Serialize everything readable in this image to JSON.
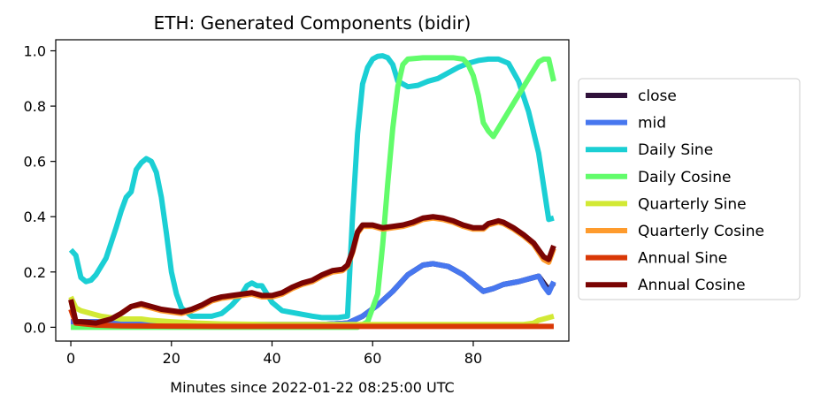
{
  "chart_data": {
    "type": "line",
    "title": "ETH: Generated Components (bidir)",
    "xlabel": "Minutes since 2022-01-22 08:25:00 UTC",
    "ylabel": "",
    "xlim": [
      -3,
      99
    ],
    "ylim": [
      -0.05,
      1.04
    ],
    "xticks": [
      0,
      20,
      40,
      60,
      80
    ],
    "yticks": [
      0.0,
      0.2,
      0.4,
      0.6,
      0.8,
      1.0
    ],
    "xtick_labels": [
      "0",
      "20",
      "40",
      "60",
      "80"
    ],
    "ytick_labels": [
      "0.0",
      "0.2",
      "0.4",
      "0.6",
      "0.8",
      "1.0"
    ],
    "grid": false,
    "legend_position": "center-right-outside",
    "series": [
      {
        "name": "close",
        "color": "#30123b",
        "points": [
          [
            0,
            0.02
          ],
          [
            5,
            0.02
          ],
          [
            10,
            0.015
          ],
          [
            20,
            0.01
          ],
          [
            30,
            0.01
          ],
          [
            40,
            0.01
          ],
          [
            50,
            0.01
          ],
          [
            55,
            0.015
          ],
          [
            58,
            0.04
          ],
          [
            61,
            0.08
          ],
          [
            64,
            0.13
          ],
          [
            67,
            0.19
          ],
          [
            70,
            0.225
          ],
          [
            72,
            0.23
          ],
          [
            75,
            0.22
          ],
          [
            78,
            0.19
          ],
          [
            80,
            0.16
          ],
          [
            82,
            0.13
          ],
          [
            84,
            0.14
          ],
          [
            86,
            0.155
          ],
          [
            89,
            0.165
          ],
          [
            92,
            0.18
          ],
          [
            93,
            0.185
          ],
          [
            94,
            0.16
          ],
          [
            95,
            0.135
          ],
          [
            96,
            0.16
          ]
        ]
      },
      {
        "name": "mid",
        "color": "#4777ef",
        "points": [
          [
            0,
            0.02
          ],
          [
            5,
            0.02
          ],
          [
            10,
            0.015
          ],
          [
            20,
            0.01
          ],
          [
            30,
            0.01
          ],
          [
            40,
            0.01
          ],
          [
            50,
            0.01
          ],
          [
            55,
            0.015
          ],
          [
            58,
            0.04
          ],
          [
            61,
            0.08
          ],
          [
            64,
            0.13
          ],
          [
            67,
            0.19
          ],
          [
            70,
            0.225
          ],
          [
            72,
            0.23
          ],
          [
            75,
            0.22
          ],
          [
            78,
            0.19
          ],
          [
            80,
            0.16
          ],
          [
            82,
            0.13
          ],
          [
            84,
            0.14
          ],
          [
            86,
            0.155
          ],
          [
            89,
            0.165
          ],
          [
            92,
            0.18
          ],
          [
            93,
            0.185
          ],
          [
            94,
            0.15
          ],
          [
            95,
            0.125
          ],
          [
            96,
            0.165
          ]
        ]
      },
      {
        "name": "Daily Sine",
        "color": "#1bcfd4",
        "points": [
          [
            0,
            0.28
          ],
          [
            1,
            0.26
          ],
          [
            2,
            0.18
          ],
          [
            3,
            0.165
          ],
          [
            4,
            0.17
          ],
          [
            5,
            0.19
          ],
          [
            7,
            0.25
          ],
          [
            9,
            0.36
          ],
          [
            10,
            0.42
          ],
          [
            11,
            0.47
          ],
          [
            12,
            0.49
          ],
          [
            13,
            0.57
          ],
          [
            14,
            0.595
          ],
          [
            15,
            0.61
          ],
          [
            16,
            0.6
          ],
          [
            17,
            0.56
          ],
          [
            18,
            0.47
          ],
          [
            19,
            0.34
          ],
          [
            20,
            0.2
          ],
          [
            21,
            0.12
          ],
          [
            22,
            0.07
          ],
          [
            24,
            0.04
          ],
          [
            26,
            0.04
          ],
          [
            28,
            0.04
          ],
          [
            30,
            0.05
          ],
          [
            32,
            0.08
          ],
          [
            34,
            0.12
          ],
          [
            35,
            0.15
          ],
          [
            36,
            0.16
          ],
          [
            37,
            0.15
          ],
          [
            38,
            0.15
          ],
          [
            39,
            0.12
          ],
          [
            40,
            0.09
          ],
          [
            42,
            0.06
          ],
          [
            45,
            0.05
          ],
          [
            48,
            0.04
          ],
          [
            50,
            0.035
          ],
          [
            53,
            0.035
          ],
          [
            55,
            0.04
          ],
          [
            56,
            0.4
          ],
          [
            57,
            0.7
          ],
          [
            58,
            0.88
          ],
          [
            59,
            0.94
          ],
          [
            60,
            0.97
          ],
          [
            61,
            0.98
          ],
          [
            62,
            0.982
          ],
          [
            63,
            0.975
          ],
          [
            64,
            0.95
          ],
          [
            65,
            0.89
          ],
          [
            67,
            0.87
          ],
          [
            69,
            0.875
          ],
          [
            71,
            0.89
          ],
          [
            73,
            0.9
          ],
          [
            75,
            0.92
          ],
          [
            77,
            0.94
          ],
          [
            79,
            0.955
          ],
          [
            81,
            0.965
          ],
          [
            83,
            0.97
          ],
          [
            85,
            0.97
          ],
          [
            87,
            0.955
          ],
          [
            89,
            0.89
          ],
          [
            91,
            0.78
          ],
          [
            93,
            0.63
          ],
          [
            95,
            0.39
          ],
          [
            96,
            0.395
          ]
        ]
      },
      {
        "name": "Daily Cosine",
        "color": "#62fc6b",
        "points": [
          [
            0,
            0.0
          ],
          [
            10,
            0.0
          ],
          [
            20,
            0.0
          ],
          [
            30,
            0.0
          ],
          [
            40,
            0.0
          ],
          [
            50,
            0.0
          ],
          [
            57,
            0.0
          ],
          [
            59,
            0.02
          ],
          [
            61,
            0.12
          ],
          [
            62,
            0.3
          ],
          [
            63,
            0.52
          ],
          [
            64,
            0.72
          ],
          [
            65,
            0.87
          ],
          [
            66,
            0.95
          ],
          [
            67,
            0.97
          ],
          [
            70,
            0.975
          ],
          [
            73,
            0.975
          ],
          [
            76,
            0.975
          ],
          [
            78,
            0.97
          ],
          [
            79,
            0.95
          ],
          [
            80,
            0.91
          ],
          [
            81,
            0.84
          ],
          [
            82,
            0.74
          ],
          [
            83,
            0.71
          ],
          [
            84,
            0.69
          ],
          [
            86,
            0.75
          ],
          [
            88,
            0.81
          ],
          [
            90,
            0.87
          ],
          [
            92,
            0.93
          ],
          [
            93,
            0.96
          ],
          [
            94,
            0.97
          ],
          [
            95,
            0.97
          ],
          [
            96,
            0.89
          ]
        ]
      },
      {
        "name": "Quarterly Sine",
        "color": "#d2e935",
        "points": [
          [
            0,
            0.11
          ],
          [
            1,
            0.07
          ],
          [
            2,
            0.06
          ],
          [
            4,
            0.05
          ],
          [
            6,
            0.04
          ],
          [
            8,
            0.035
          ],
          [
            10,
            0.03
          ],
          [
            14,
            0.03
          ],
          [
            16,
            0.025
          ],
          [
            20,
            0.02
          ],
          [
            25,
            0.015
          ],
          [
            30,
            0.012
          ],
          [
            40,
            0.01
          ],
          [
            50,
            0.01
          ],
          [
            60,
            0.01
          ],
          [
            70,
            0.01
          ],
          [
            80,
            0.01
          ],
          [
            90,
            0.01
          ],
          [
            92,
            0.015
          ],
          [
            93,
            0.025
          ],
          [
            94,
            0.03
          ],
          [
            96,
            0.04
          ]
        ]
      },
      {
        "name": "Quarterly Cosine",
        "color": "#fe9b2d",
        "points": [
          [
            0,
            0.1
          ],
          [
            1,
            0.02
          ],
          [
            2,
            0.02
          ],
          [
            5,
            0.015
          ],
          [
            8,
            0.03
          ],
          [
            10,
            0.05
          ],
          [
            12,
            0.075
          ],
          [
            14,
            0.08
          ],
          [
            16,
            0.07
          ],
          [
            18,
            0.06
          ],
          [
            20,
            0.055
          ],
          [
            22,
            0.05
          ],
          [
            24,
            0.06
          ],
          [
            26,
            0.075
          ],
          [
            28,
            0.095
          ],
          [
            30,
            0.105
          ],
          [
            32,
            0.11
          ],
          [
            34,
            0.115
          ],
          [
            36,
            0.12
          ],
          [
            38,
            0.11
          ],
          [
            40,
            0.11
          ],
          [
            42,
            0.12
          ],
          [
            44,
            0.14
          ],
          [
            46,
            0.155
          ],
          [
            48,
            0.165
          ],
          [
            50,
            0.185
          ],
          [
            52,
            0.2
          ],
          [
            54,
            0.205
          ],
          [
            55,
            0.22
          ],
          [
            56,
            0.27
          ],
          [
            57,
            0.34
          ],
          [
            58,
            0.365
          ],
          [
            60,
            0.365
          ],
          [
            62,
            0.355
          ],
          [
            64,
            0.36
          ],
          [
            66,
            0.365
          ],
          [
            68,
            0.375
          ],
          [
            70,
            0.39
          ],
          [
            72,
            0.395
          ],
          [
            74,
            0.39
          ],
          [
            76,
            0.38
          ],
          [
            78,
            0.365
          ],
          [
            80,
            0.355
          ],
          [
            82,
            0.355
          ],
          [
            83,
            0.37
          ],
          [
            84,
            0.375
          ],
          [
            85,
            0.38
          ],
          [
            86,
            0.375
          ],
          [
            88,
            0.355
          ],
          [
            90,
            0.33
          ],
          [
            92,
            0.3
          ],
          [
            94,
            0.245
          ],
          [
            95,
            0.235
          ],
          [
            96,
            0.285
          ]
        ]
      },
      {
        "name": "Annual Sine",
        "color": "#d93806",
        "points": [
          [
            0,
            0.065
          ],
          [
            1,
            0.015
          ],
          [
            5,
            0.008
          ],
          [
            10,
            0.005
          ],
          [
            20,
            0.004
          ],
          [
            30,
            0.003
          ],
          [
            40,
            0.003
          ],
          [
            50,
            0.003
          ],
          [
            60,
            0.003
          ],
          [
            70,
            0.003
          ],
          [
            80,
            0.003
          ],
          [
            90,
            0.003
          ],
          [
            96,
            0.003
          ]
        ]
      },
      {
        "name": "Annual Cosine",
        "color": "#7a0403",
        "points": [
          [
            0,
            0.1
          ],
          [
            1,
            0.02
          ],
          [
            2,
            0.02
          ],
          [
            5,
            0.015
          ],
          [
            8,
            0.03
          ],
          [
            10,
            0.05
          ],
          [
            12,
            0.075
          ],
          [
            14,
            0.085
          ],
          [
            16,
            0.075
          ],
          [
            18,
            0.065
          ],
          [
            20,
            0.06
          ],
          [
            22,
            0.055
          ],
          [
            24,
            0.065
          ],
          [
            26,
            0.08
          ],
          [
            28,
            0.1
          ],
          [
            30,
            0.11
          ],
          [
            32,
            0.115
          ],
          [
            34,
            0.12
          ],
          [
            36,
            0.125
          ],
          [
            38,
            0.115
          ],
          [
            40,
            0.115
          ],
          [
            42,
            0.125
          ],
          [
            44,
            0.145
          ],
          [
            46,
            0.16
          ],
          [
            48,
            0.17
          ],
          [
            50,
            0.19
          ],
          [
            52,
            0.205
          ],
          [
            54,
            0.21
          ],
          [
            55,
            0.225
          ],
          [
            56,
            0.275
          ],
          [
            57,
            0.345
          ],
          [
            58,
            0.37
          ],
          [
            60,
            0.37
          ],
          [
            62,
            0.36
          ],
          [
            64,
            0.365
          ],
          [
            66,
            0.37
          ],
          [
            68,
            0.38
          ],
          [
            70,
            0.395
          ],
          [
            72,
            0.4
          ],
          [
            74,
            0.395
          ],
          [
            76,
            0.385
          ],
          [
            78,
            0.37
          ],
          [
            80,
            0.36
          ],
          [
            82,
            0.36
          ],
          [
            83,
            0.375
          ],
          [
            84,
            0.38
          ],
          [
            85,
            0.385
          ],
          [
            86,
            0.38
          ],
          [
            88,
            0.36
          ],
          [
            90,
            0.335
          ],
          [
            92,
            0.305
          ],
          [
            94,
            0.255
          ],
          [
            95,
            0.245
          ],
          [
            96,
            0.295
          ]
        ]
      }
    ]
  }
}
